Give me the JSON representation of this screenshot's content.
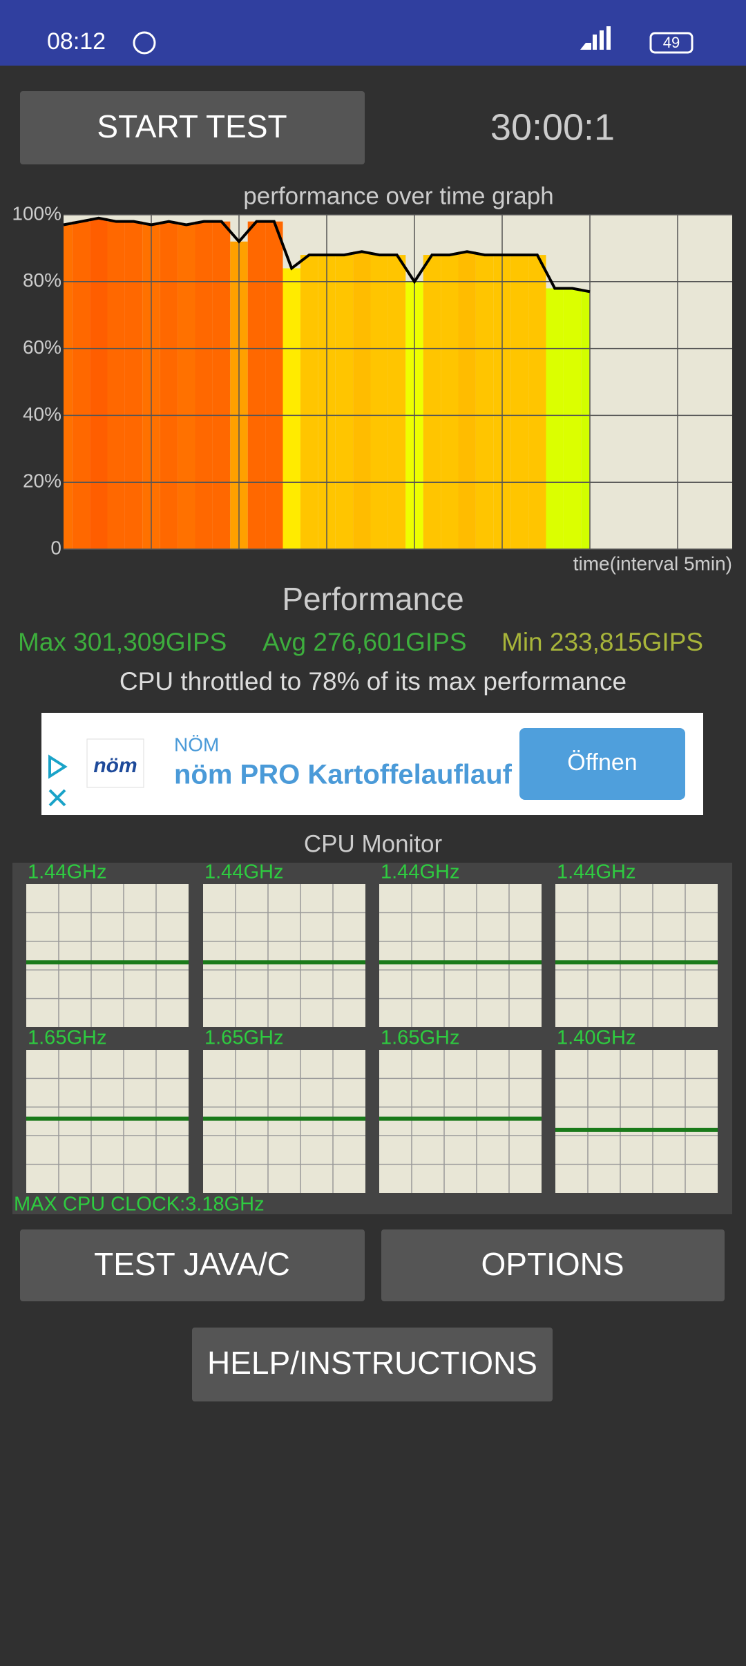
{
  "status_bar": {
    "time": "08:12",
    "battery": "49"
  },
  "start_button": "START TEST",
  "timer": "30:00:1",
  "chart_data": {
    "type": "line",
    "title": "performance over time graph",
    "x_label": "time(interval 5min)",
    "ylim": [
      0,
      100
    ],
    "yticks": [
      0,
      {
        "value": 20,
        "label": "20%"
      },
      {
        "value": 40,
        "label": "40%"
      },
      {
        "value": 60,
        "label": "60%"
      },
      {
        "value": 80,
        "label": "80%"
      },
      {
        "value": 100,
        "label": "100%"
      }
    ],
    "color": "#000000",
    "values": [
      97,
      98,
      99,
      98,
      98,
      97,
      98,
      97,
      98,
      98,
      92,
      98,
      98,
      84,
      88,
      88,
      88,
      89,
      88,
      88,
      80,
      88,
      88,
      89,
      88,
      88,
      88,
      88,
      78,
      78,
      77
    ]
  },
  "performance": {
    "title": "Performance",
    "max": "Max 301,309GIPS",
    "avg": "Avg 276,601GIPS",
    "min": "Min 233,815GIPS",
    "throttle": "CPU throttled to 78% of its max performance"
  },
  "ad": {
    "brand": "NÖM",
    "logo": "nöm",
    "headline": "nöm PRO Kartoffelauflauf",
    "button": "Öffnen"
  },
  "cpu_monitor": {
    "title": "CPU Monitor",
    "cores": [
      {
        "value": 1.44,
        "label": "1.44GHz"
      },
      {
        "value": 1.44,
        "label": "1.44GHz"
      },
      {
        "value": 1.44,
        "label": "1.44GHz"
      },
      {
        "value": 1.44,
        "label": "1.44GHz"
      },
      {
        "value": 1.65,
        "label": "1.65GHz"
      },
      {
        "value": 1.65,
        "label": "1.65GHz"
      },
      {
        "value": 1.65,
        "label": "1.65GHz"
      },
      {
        "value": 1.4,
        "label": "1.40GHz"
      }
    ],
    "max_clock": {
      "value": 3.18,
      "label": "MAX CPU CLOCK:3.18GHz"
    }
  },
  "buttons": {
    "test": "TEST JAVA/C",
    "options": "OPTIONS",
    "help": "HELP/INSTRUCTIONS"
  }
}
